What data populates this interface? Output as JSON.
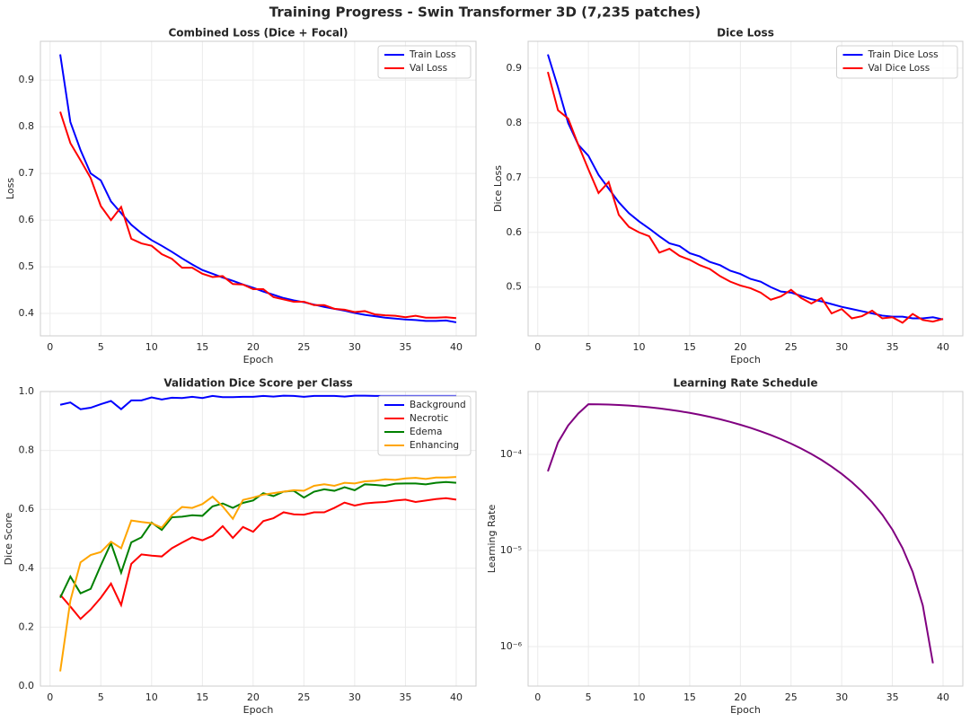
{
  "title": "Training Progress - Swin Transformer 3D (7,235 patches)",
  "chart_data": [
    {
      "type": "line",
      "title": "Combined Loss (Dice + Focal)",
      "xlabel": "Epoch",
      "ylabel": "Loss",
      "x": [
        1,
        2,
        3,
        4,
        5,
        6,
        7,
        8,
        9,
        10,
        11,
        12,
        13,
        14,
        15,
        16,
        17,
        18,
        19,
        20,
        21,
        22,
        23,
        24,
        25,
        26,
        27,
        28,
        29,
        30,
        31,
        32,
        33,
        34,
        35,
        36,
        37,
        38,
        39,
        40
      ],
      "series": [
        {
          "name": "Train Loss",
          "color": "#0000ff",
          "values": [
            0.955,
            0.81,
            0.75,
            0.7,
            0.685,
            0.64,
            0.615,
            0.59,
            0.572,
            0.557,
            0.545,
            0.532,
            0.518,
            0.505,
            0.493,
            0.485,
            0.477,
            0.47,
            0.462,
            0.455,
            0.447,
            0.44,
            0.433,
            0.428,
            0.424,
            0.419,
            0.414,
            0.41,
            0.406,
            0.401,
            0.397,
            0.394,
            0.391,
            0.389,
            0.387,
            0.386,
            0.384,
            0.384,
            0.385,
            0.381
          ]
        },
        {
          "name": "Val Loss",
          "color": "#ff0000",
          "values": [
            0.832,
            0.765,
            0.728,
            0.69,
            0.63,
            0.6,
            0.628,
            0.56,
            0.55,
            0.545,
            0.527,
            0.517,
            0.498,
            0.498,
            0.485,
            0.478,
            0.48,
            0.463,
            0.462,
            0.452,
            0.452,
            0.435,
            0.43,
            0.425,
            0.425,
            0.418,
            0.418,
            0.41,
            0.408,
            0.403,
            0.405,
            0.398,
            0.396,
            0.395,
            0.392,
            0.395,
            0.391,
            0.391,
            0.392,
            0.39
          ]
        }
      ],
      "xlim": [
        -0.95,
        41.95
      ],
      "xticks": [
        0,
        5,
        10,
        15,
        20,
        25,
        30,
        35,
        40
      ],
      "ylim": [
        0.352,
        0.983
      ],
      "yticks": [
        0.4,
        0.5,
        0.6,
        0.7,
        0.8,
        0.9
      ],
      "grid": true,
      "legend": "upper right"
    },
    {
      "type": "line",
      "title": "Dice Loss",
      "xlabel": "Epoch",
      "ylabel": "Dice Loss",
      "x": [
        1,
        2,
        3,
        4,
        5,
        6,
        7,
        8,
        9,
        10,
        11,
        12,
        13,
        14,
        15,
        16,
        17,
        18,
        19,
        20,
        21,
        22,
        23,
        24,
        25,
        26,
        27,
        28,
        29,
        30,
        31,
        32,
        33,
        34,
        35,
        36,
        37,
        38,
        39,
        40
      ],
      "series": [
        {
          "name": "Train Dice Loss",
          "color": "#0000ff",
          "values": [
            0.925,
            0.865,
            0.8,
            0.76,
            0.74,
            0.705,
            0.68,
            0.655,
            0.635,
            0.62,
            0.607,
            0.593,
            0.58,
            0.575,
            0.562,
            0.556,
            0.546,
            0.54,
            0.53,
            0.524,
            0.515,
            0.51,
            0.5,
            0.492,
            0.49,
            0.484,
            0.478,
            0.474,
            0.469,
            0.464,
            0.46,
            0.456,
            0.452,
            0.448,
            0.446,
            0.446,
            0.443,
            0.443,
            0.445,
            0.441
          ]
        },
        {
          "name": "Val Dice Loss",
          "color": "#ff0000",
          "values": [
            0.893,
            0.823,
            0.808,
            0.76,
            0.715,
            0.672,
            0.692,
            0.632,
            0.61,
            0.6,
            0.593,
            0.563,
            0.57,
            0.557,
            0.55,
            0.54,
            0.533,
            0.52,
            0.51,
            0.503,
            0.498,
            0.49,
            0.477,
            0.483,
            0.495,
            0.48,
            0.47,
            0.48,
            0.452,
            0.46,
            0.443,
            0.447,
            0.457,
            0.443,
            0.445,
            0.435,
            0.451,
            0.44,
            0.437,
            0.442
          ]
        }
      ],
      "xlim": [
        -0.95,
        41.95
      ],
      "xticks": [
        0,
        5,
        10,
        15,
        20,
        25,
        30,
        35,
        40
      ],
      "ylim": [
        0.411,
        0.949
      ],
      "yticks": [
        0.5,
        0.6,
        0.7,
        0.8,
        0.9
      ],
      "grid": true,
      "legend": "upper right"
    },
    {
      "type": "line",
      "title": "Validation Dice Score per Class",
      "xlabel": "Epoch",
      "ylabel": "Dice Score",
      "x": [
        1,
        2,
        3,
        4,
        5,
        6,
        7,
        8,
        9,
        10,
        11,
        12,
        13,
        14,
        15,
        16,
        17,
        18,
        19,
        20,
        21,
        22,
        23,
        24,
        25,
        26,
        27,
        28,
        29,
        30,
        31,
        32,
        33,
        34,
        35,
        36,
        37,
        38,
        39,
        40
      ],
      "series": [
        {
          "name": "Background",
          "color": "#0000ff",
          "values": [
            0.955,
            0.963,
            0.94,
            0.945,
            0.957,
            0.968,
            0.94,
            0.97,
            0.97,
            0.98,
            0.973,
            0.979,
            0.978,
            0.982,
            0.978,
            0.985,
            0.981,
            0.981,
            0.982,
            0.982,
            0.985,
            0.983,
            0.986,
            0.985,
            0.982,
            0.985,
            0.985,
            0.985,
            0.983,
            0.986,
            0.986,
            0.985,
            0.985,
            0.985,
            0.985,
            0.985,
            0.985,
            0.985,
            0.985,
            0.985
          ]
        },
        {
          "name": "Necrotic",
          "color": "#ff0000",
          "values": [
            0.31,
            0.27,
            0.228,
            0.26,
            0.3,
            0.348,
            0.275,
            0.415,
            0.447,
            0.443,
            0.44,
            0.468,
            0.487,
            0.505,
            0.495,
            0.51,
            0.543,
            0.503,
            0.54,
            0.524,
            0.56,
            0.57,
            0.59,
            0.583,
            0.582,
            0.59,
            0.59,
            0.605,
            0.623,
            0.613,
            0.62,
            0.623,
            0.625,
            0.63,
            0.633,
            0.625,
            0.63,
            0.635,
            0.638,
            0.633
          ]
        },
        {
          "name": "Edema",
          "color": "#008000",
          "values": [
            0.3,
            0.372,
            0.315,
            0.33,
            0.41,
            0.485,
            0.385,
            0.488,
            0.505,
            0.555,
            0.53,
            0.573,
            0.575,
            0.58,
            0.578,
            0.61,
            0.62,
            0.605,
            0.622,
            0.63,
            0.655,
            0.645,
            0.66,
            0.663,
            0.64,
            0.66,
            0.668,
            0.663,
            0.675,
            0.665,
            0.685,
            0.683,
            0.68,
            0.687,
            0.688,
            0.688,
            0.685,
            0.69,
            0.693,
            0.69
          ]
        },
        {
          "name": "Enhancing",
          "color": "#ffa500",
          "values": [
            0.05,
            0.29,
            0.42,
            0.445,
            0.455,
            0.49,
            0.468,
            0.562,
            0.557,
            0.553,
            0.538,
            0.58,
            0.608,
            0.605,
            0.618,
            0.643,
            0.61,
            0.568,
            0.632,
            0.64,
            0.65,
            0.655,
            0.66,
            0.665,
            0.663,
            0.68,
            0.685,
            0.68,
            0.69,
            0.688,
            0.695,
            0.697,
            0.702,
            0.7,
            0.705,
            0.707,
            0.703,
            0.708,
            0.708,
            0.71
          ]
        }
      ],
      "xlim": [
        -0.95,
        41.95
      ],
      "xticks": [
        0,
        5,
        10,
        15,
        20,
        25,
        30,
        35,
        40
      ],
      "ylim": [
        0,
        1
      ],
      "yticks": [
        {
          "value": 0,
          "label": "0.0"
        },
        0.2,
        0.4,
        0.6,
        0.8,
        {
          "value": 1,
          "label": "1.0"
        }
      ],
      "grid": true,
      "legend": "upper right"
    },
    {
      "type": "line",
      "title": "Learning Rate Schedule",
      "xlabel": "Epoch",
      "ylabel": "Learning Rate",
      "x": [
        1,
        2,
        3,
        4,
        5,
        6,
        7,
        8,
        9,
        10,
        11,
        12,
        13,
        14,
        15,
        16,
        17,
        18,
        19,
        20,
        21,
        22,
        23,
        24,
        25,
        26,
        27,
        28,
        29,
        30,
        31,
        32,
        33,
        34,
        35,
        36,
        37,
        38,
        39,
        40
      ],
      "series": [
        {
          "name": "Learning Rate",
          "color": "#800080",
          "values": [
            6.66e-05,
            0.0001332,
            0.0001998,
            0.0002664,
            0.000333,
            0.0003323,
            0.0003303,
            0.000327,
            0.0003224,
            0.0003165,
            0.0003094,
            0.0003012,
            0.0002919,
            0.0002815,
            0.0002703,
            0.0002583,
            0.0002454,
            0.0002319,
            0.000218,
            0.0002035,
            0.0001889,
            0.000174,
            0.000159,
            0.0001442,
            0.0001295,
            0.000115,
            0.0001011,
            8.76e-05,
            7.47e-05,
            6.27e-05,
            5.15e-05,
            4.11e-05,
            3.18e-05,
            2.36e-05,
            1.65e-05,
            1.06e-05,
            6e-06,
            2.68e-06,
            6.7e-07,
            null
          ]
        }
      ],
      "xlim": [
        -0.95,
        41.95
      ],
      "xticks": [
        0,
        5,
        10,
        15,
        20,
        25,
        30,
        35,
        40
      ],
      "ylim": [
        3.88e-07,
        0.000451
      ],
      "log_y": true,
      "yticks": [
        {
          "value": 1e-06,
          "label": "10⁻⁶"
        },
        {
          "value": 1e-05,
          "label": "10⁻⁵"
        },
        {
          "value": 0.0001,
          "label": "10⁻⁴"
        }
      ],
      "grid": true,
      "legend": null
    }
  ]
}
